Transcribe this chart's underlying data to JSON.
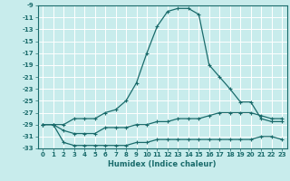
{
  "xlabel": "Humidex (Indice chaleur)",
  "bg_color": "#c8ecec",
  "grid_color": "#ffffff",
  "line_color": "#1a6b6b",
  "xlim": [
    -0.5,
    23.5
  ],
  "ylim": [
    -33,
    -9
  ],
  "xticks": [
    0,
    1,
    2,
    3,
    4,
    5,
    6,
    7,
    8,
    9,
    10,
    11,
    12,
    13,
    14,
    15,
    16,
    17,
    18,
    19,
    20,
    21,
    22,
    23
  ],
  "yticks": [
    -9,
    -11,
    -13,
    -15,
    -17,
    -19,
    -21,
    -23,
    -25,
    -27,
    -29,
    -31,
    -33
  ],
  "series": [
    {
      "x": [
        0,
        1,
        2,
        3,
        4,
        5,
        6,
        7,
        8,
        9,
        10,
        11,
        12,
        13,
        14,
        15,
        16,
        17,
        18,
        19,
        20,
        21,
        22,
        23
      ],
      "y": [
        -29,
        -29,
        -29,
        -28,
        -28,
        -28,
        -27,
        -26.5,
        -25,
        -22,
        -17,
        -12.5,
        -10,
        -9.5,
        -9.5,
        -10.5,
        -19,
        -21,
        -23,
        -25.2,
        -25.2,
        -28,
        -28.5,
        -28.5
      ]
    },
    {
      "x": [
        0,
        1,
        2,
        3,
        4,
        5,
        6,
        7,
        8,
        9,
        10,
        11,
        12,
        13,
        14,
        15,
        16,
        17,
        18,
        19,
        20,
        21,
        22,
        23
      ],
      "y": [
        -29,
        -29,
        -30,
        -30.5,
        -30.5,
        -30.5,
        -29.5,
        -29.5,
        -29.5,
        -29,
        -29,
        -28.5,
        -28.5,
        -28,
        -28,
        -28,
        -27.5,
        -27,
        -27,
        -27,
        -27,
        -27.5,
        -28,
        -28
      ]
    },
    {
      "x": [
        0,
        1,
        2,
        3,
        4,
        5,
        6,
        7,
        8,
        9,
        10,
        11,
        12,
        13,
        14,
        15,
        16,
        17,
        18,
        19,
        20,
        21,
        22,
        23
      ],
      "y": [
        -29,
        -29,
        -32,
        -32.5,
        -32.5,
        -32.5,
        -32.5,
        -32.5,
        -32.5,
        -32,
        -32,
        -31.5,
        -31.5,
        -31.5,
        -31.5,
        -31.5,
        -31.5,
        -31.5,
        -31.5,
        -31.5,
        -31.5,
        -31,
        -31,
        -31.5
      ]
    }
  ]
}
